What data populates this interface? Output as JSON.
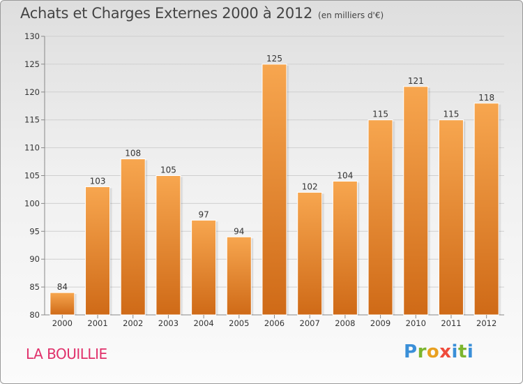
{
  "header": {
    "title": "Achats et Charges Externes 2000 à 2012",
    "subtitle": "(en milliers d'€)"
  },
  "footer": {
    "place": "LA BOUILLIE",
    "logo": "Proxiti"
  },
  "colors": {
    "bar_light": "#f7a64f",
    "bar_dark": "#cf6a17",
    "place": "#e0306a",
    "logo_letters": [
      "#3a8fd8",
      "#7bb52e",
      "#e8a020",
      "#ef4b3c",
      "#3a8fd8",
      "#7bb52e",
      "#3a8fd8"
    ]
  },
  "chart_data": {
    "type": "bar",
    "title": "Achats et Charges Externes 2000 à 2012",
    "subtitle": "(en milliers d'€)",
    "categories": [
      "2000",
      "2001",
      "2002",
      "2003",
      "2004",
      "2005",
      "2006",
      "2007",
      "2008",
      "2009",
      "2010",
      "2011",
      "2012"
    ],
    "values": [
      84,
      103,
      108,
      105,
      97,
      94,
      125,
      102,
      104,
      115,
      121,
      115,
      118
    ],
    "ylim": [
      80,
      130
    ],
    "yticks": [
      80,
      85,
      90,
      95,
      100,
      105,
      110,
      115,
      120,
      125,
      130
    ],
    "grid": true,
    "legend": "none"
  }
}
